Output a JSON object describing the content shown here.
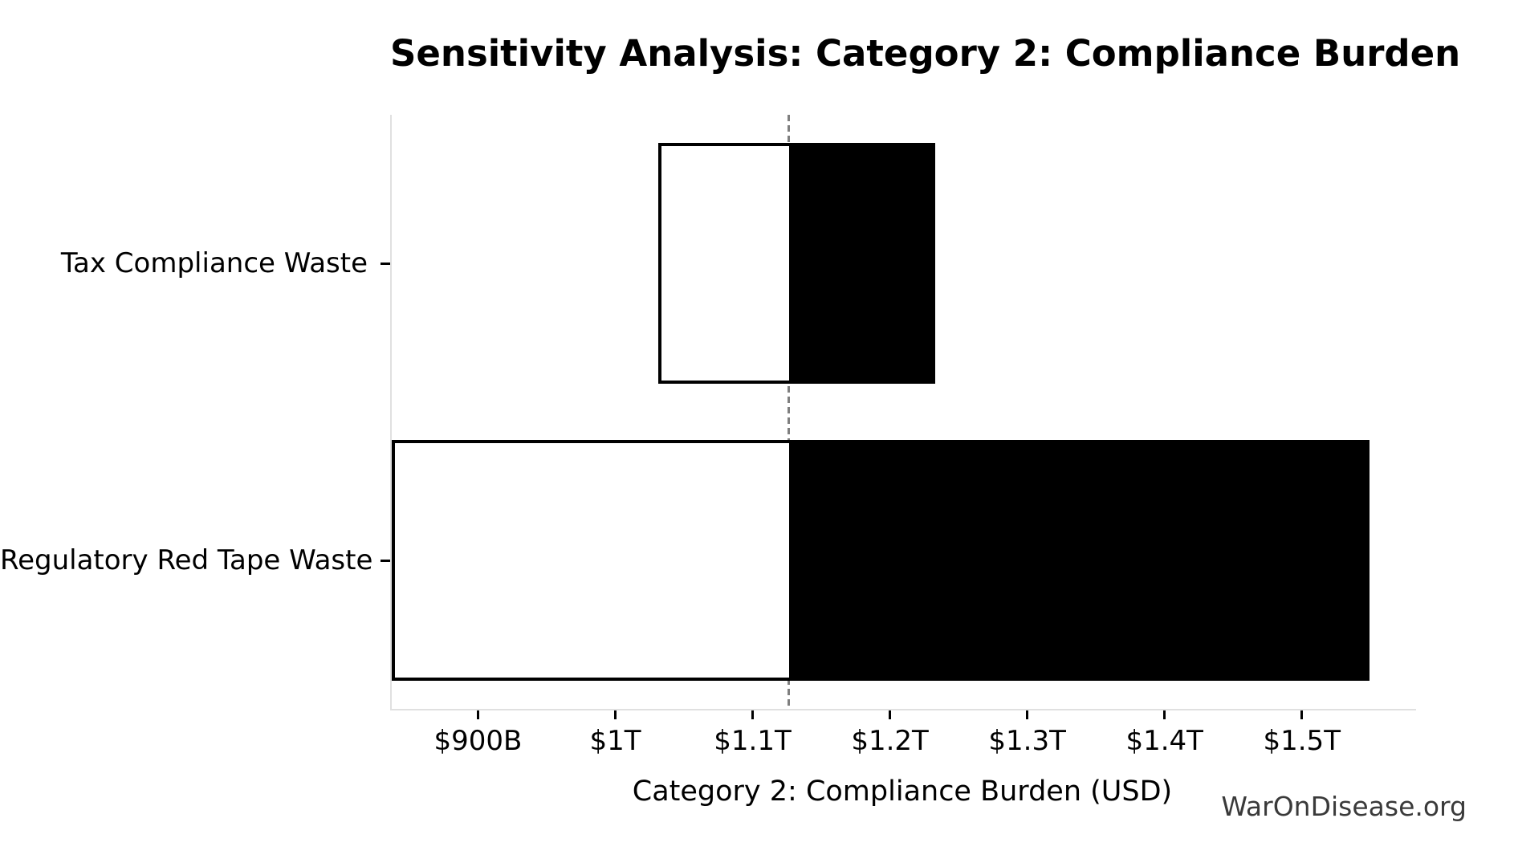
{
  "watermark": "WarOnDisease.org",
  "chart_data": {
    "type": "bar",
    "subtype": "tornado-sensitivity-horizontal",
    "title": "Sensitivity Analysis: Category 2: Compliance Burden",
    "xlabel": "Category 2: Compliance Burden (USD)",
    "ylabel": "",
    "unit": "trillions of USD",
    "xlim": [
      0.836,
      1.582
    ],
    "baseline": 1.125,
    "grid": false,
    "legend": null,
    "xticks": [
      {
        "value": 0.9,
        "label": "$900B"
      },
      {
        "value": 1.0,
        "label": "$1T"
      },
      {
        "value": 1.1,
        "label": "$1.1T"
      },
      {
        "value": 1.2,
        "label": "$1.2T"
      },
      {
        "value": 1.3,
        "label": "$1.3T"
      },
      {
        "value": 1.4,
        "label": "$1.4T"
      },
      {
        "value": 1.5,
        "label": "$1.5T"
      }
    ],
    "categories": [
      "Tax Compliance Waste",
      "Regulatory Red Tape Waste"
    ],
    "bars": [
      {
        "label": "Tax Compliance Waste",
        "low": 1.03,
        "high": 1.232
      },
      {
        "label": "Regulatory Red Tape Waste",
        "low": 0.836,
        "high": 1.548
      }
    ],
    "colors": {
      "low_side_fill": "#ffffff",
      "high_side_fill": "#000000",
      "bar_edge": "#000000",
      "baseline_line": "#7f7f7f",
      "spine": "#e0e0e0",
      "tick_mark": "#000000",
      "text": "#000000",
      "watermark_text": "#3a3a3a"
    }
  }
}
